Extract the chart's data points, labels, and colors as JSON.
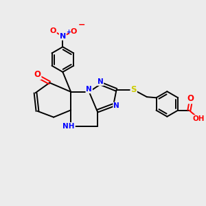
{
  "background_color": "#ececec",
  "bond_color": "#000000",
  "atom_colors": {
    "N": "#0000ff",
    "O": "#ff0000",
    "S": "#cccc00",
    "C": "#000000"
  },
  "figsize": [
    3.0,
    3.0
  ],
  "dpi": 100
}
